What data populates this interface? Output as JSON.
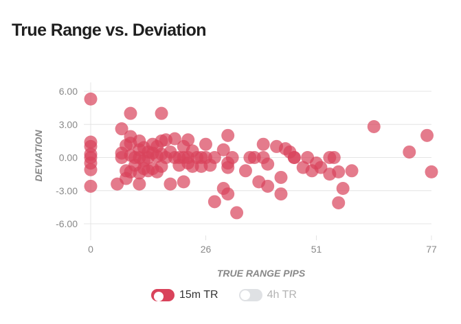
{
  "title": "True Range vs. Deviation",
  "colors": {
    "series_active": "#d9435b",
    "series_inactive": "#dfe1e4",
    "axis_text": "#888888",
    "axis_title": "#888888",
    "grid": "#e4e4e4",
    "active_label": "#333333",
    "inactive_label": "#b3b3b3"
  },
  "legend": [
    {
      "label": "15m TR",
      "active": true,
      "icon": "toggle-on-icon"
    },
    {
      "label": "4h TR",
      "active": false,
      "icon": "toggle-off-icon"
    }
  ],
  "chart_data": {
    "type": "scatter",
    "xlabel": "TRUE RANGE PIPS",
    "ylabel": "DEVIATION",
    "xlim": [
      0,
      77
    ],
    "ylim": [
      -6.8,
      6.3
    ],
    "x_ticks": [
      0,
      26,
      51,
      77
    ],
    "y_ticks": [
      6,
      3,
      0,
      -3,
      -6
    ],
    "y_tick_labels": [
      "6.00",
      "3.00",
      "0.00",
      "-3.00",
      "-6.00"
    ],
    "grid": true,
    "series": [
      {
        "name": "15m TR",
        "visible": true,
        "points": [
          [
            0,
            5.3
          ],
          [
            0,
            1.4
          ],
          [
            0,
            1.0
          ],
          [
            0,
            0.3
          ],
          [
            0,
            0.0
          ],
          [
            0,
            -0.5
          ],
          [
            0,
            -1.1
          ],
          [
            0,
            -2.6
          ],
          [
            6,
            -2.4
          ],
          [
            7,
            2.6
          ],
          [
            7,
            0.4
          ],
          [
            7,
            0.0
          ],
          [
            8,
            1.1
          ],
          [
            8,
            -1.2
          ],
          [
            8,
            -1.9
          ],
          [
            9,
            4.0
          ],
          [
            9,
            1.9
          ],
          [
            9,
            1.3
          ],
          [
            9,
            0.2
          ],
          [
            9,
            -1.3
          ],
          [
            10,
            0.0
          ],
          [
            10,
            -0.7
          ],
          [
            11,
            1.5
          ],
          [
            11,
            0.7
          ],
          [
            11,
            0.0
          ],
          [
            11,
            -1.4
          ],
          [
            11,
            -2.4
          ],
          [
            12,
            0.9
          ],
          [
            12,
            -0.3
          ],
          [
            12,
            -1.0
          ],
          [
            13,
            0.5
          ],
          [
            13,
            0.0
          ],
          [
            13,
            -1.2
          ],
          [
            14,
            1.2
          ],
          [
            14,
            0.4
          ],
          [
            14,
            -1.0
          ],
          [
            15,
            1.0
          ],
          [
            15,
            0.1
          ],
          [
            15,
            -1.3
          ],
          [
            16,
            4.0
          ],
          [
            16,
            1.5
          ],
          [
            16,
            0.3
          ],
          [
            16,
            -0.8
          ],
          [
            17,
            1.6
          ],
          [
            17,
            0.0
          ],
          [
            18,
            0.5
          ],
          [
            18,
            -2.4
          ],
          [
            19,
            1.7
          ],
          [
            19,
            0.0
          ],
          [
            20,
            0.0
          ],
          [
            20,
            -0.7
          ],
          [
            21,
            1.0
          ],
          [
            21,
            0.0
          ],
          [
            21,
            -2.2
          ],
          [
            22,
            1.6
          ],
          [
            22,
            0.0
          ],
          [
            22,
            -0.5
          ],
          [
            23,
            0.6
          ],
          [
            23,
            -0.8
          ],
          [
            24,
            0.0
          ],
          [
            25,
            0.0
          ],
          [
            25,
            -0.8
          ],
          [
            26,
            1.2
          ],
          [
            26,
            0.0
          ],
          [
            27,
            -0.7
          ],
          [
            28,
            -4.0
          ],
          [
            28,
            0.0
          ],
          [
            30,
            0.7
          ],
          [
            30,
            -2.8
          ],
          [
            31,
            2.0
          ],
          [
            31,
            -0.5
          ],
          [
            31,
            -0.9
          ],
          [
            31,
            -3.3
          ],
          [
            32,
            0.0
          ],
          [
            33,
            -5.0
          ],
          [
            35,
            -1.2
          ],
          [
            36,
            0.0
          ],
          [
            37,
            0.0
          ],
          [
            38,
            -2.2
          ],
          [
            39,
            1.2
          ],
          [
            39,
            0.0
          ],
          [
            40,
            -2.6
          ],
          [
            40,
            -0.6
          ],
          [
            42,
            1.0
          ],
          [
            43,
            -1.8
          ],
          [
            43,
            -3.3
          ],
          [
            44,
            0.8
          ],
          [
            45,
            0.5
          ],
          [
            46,
            0.0
          ],
          [
            46,
            0.0
          ],
          [
            48,
            -0.9
          ],
          [
            49,
            0.0
          ],
          [
            50,
            -1.2
          ],
          [
            51,
            -0.5
          ],
          [
            52,
            -0.9
          ],
          [
            54,
            0.0
          ],
          [
            54,
            -1.5
          ],
          [
            55,
            0.0
          ],
          [
            56,
            -1.3
          ],
          [
            56,
            -4.1
          ],
          [
            57,
            -2.8
          ],
          [
            59,
            -1.2
          ],
          [
            64,
            2.8
          ],
          [
            72,
            0.5
          ],
          [
            76,
            2.0
          ],
          [
            77,
            -1.3
          ]
        ]
      },
      {
        "name": "4h TR",
        "visible": false,
        "points": []
      }
    ]
  }
}
